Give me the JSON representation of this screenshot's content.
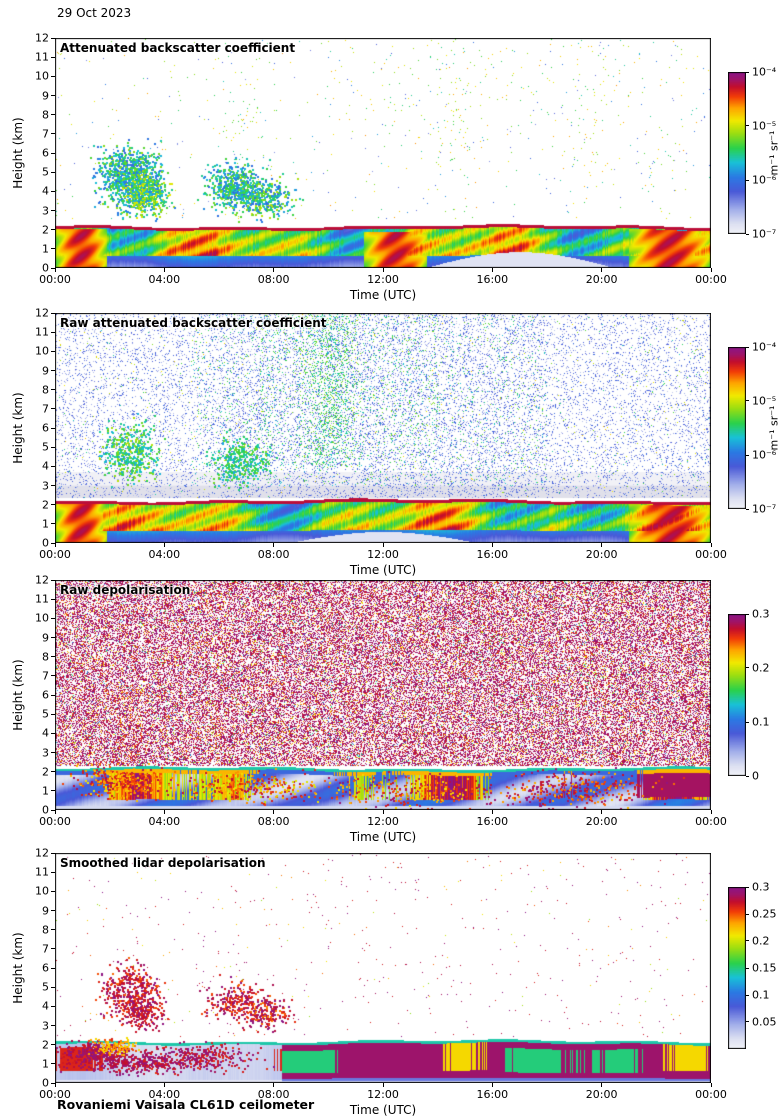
{
  "page": {
    "date_label": "29 Oct 2023",
    "footer": "Rovaniemi Vaisala CL61D ceilometer"
  },
  "style": {
    "figure_bg": "#ffffff",
    "axis_color": "#000000",
    "colormap": [
      [
        0.0,
        "#f2f2f8"
      ],
      [
        0.06,
        "#dde1f2"
      ],
      [
        0.15,
        "#a2aeea"
      ],
      [
        0.26,
        "#4a5ad8"
      ],
      [
        0.35,
        "#2b7ae4"
      ],
      [
        0.44,
        "#19c2d8"
      ],
      [
        0.53,
        "#2bd24b"
      ],
      [
        0.62,
        "#9ade12"
      ],
      [
        0.7,
        "#f2ea00"
      ],
      [
        0.78,
        "#ffa400"
      ],
      [
        0.85,
        "#f23c08"
      ],
      [
        0.91,
        "#c40e2c"
      ],
      [
        0.955,
        "#a01468"
      ],
      [
        1.0,
        "#8c1488"
      ]
    ]
  },
  "chart_data": [
    {
      "type": "heatmap",
      "title": "Attenuated backscatter coefficient",
      "xlabel": "Time (UTC)",
      "ylabel": "Height (km)",
      "x_range_hours": [
        0,
        24
      ],
      "x_ticks": [
        "00:00",
        "04:00",
        "08:00",
        "12:00",
        "16:00",
        "20:00",
        "00:00"
      ],
      "ylim": [
        0,
        12
      ],
      "y_ticks": [
        "0",
        "1",
        "2",
        "3",
        "4",
        "5",
        "6",
        "7",
        "8",
        "9",
        "10",
        "11",
        "12"
      ],
      "grid": false,
      "colorbar": {
        "scale": "log",
        "range": [
          1e-07,
          0.0001
        ],
        "unit": "m⁻¹ sr⁻¹",
        "ticks": [
          {
            "label": "10⁻⁴",
            "f": 1
          },
          {
            "label": "10⁻⁵",
            "f": 0.667
          },
          {
            "label": "10⁻⁶",
            "f": 0.333
          },
          {
            "label": "10⁻⁷",
            "f": 0
          }
        ]
      },
      "features": {
        "boundary_layer": {
          "top_km": 2.2,
          "value_range": "1e-5 to 1e-4 m-1 sr-1",
          "cap": "thin dark-red lid at ~2.2-2.3 km"
        },
        "clouds": [
          {
            "time_utc": "01:30-04:00",
            "height_km": [
              3,
              6
            ],
            "value": "~1e-6 to 1e-5"
          },
          {
            "time_utc": "05:30-08:30",
            "height_km": [
              3,
              5
            ],
            "value": "~1e-6 to 1e-5"
          }
        ],
        "background": "white with sparse green/orange speckle noise above 2.5 km",
        "low_signal_patch": "very low backscatter near surface ~14:00-20:00"
      },
      "seed": 11,
      "render": {
        "speckle": [
          {
            "p": 0.0045,
            "vmin": 0.45,
            "vmax": 0.8,
            "hmin": 2.6,
            "hmax": 12,
            "streaky": true
          },
          {
            "p": 0.0035,
            "vmin": 0.48,
            "vmax": 0.78,
            "hmin": 5.5,
            "hmax": 12,
            "tmin": 10,
            "tmax": 21.5
          },
          {
            "p": 0.0015,
            "vmin": 0.18,
            "vmax": 0.4,
            "hmin": 2.6,
            "hmax": 12
          }
        ],
        "clouds": [
          {
            "t": 2.7,
            "h": 4.8,
            "st": 0.55,
            "sh": 0.75,
            "n": 900,
            "vmin": 0.3,
            "vmax": 0.62,
            "s": 2
          },
          {
            "t": 3.3,
            "h": 3.9,
            "st": 0.4,
            "sh": 0.5,
            "n": 500,
            "vmin": 0.35,
            "vmax": 0.7,
            "s": 2
          },
          {
            "t": 6.6,
            "h": 4.3,
            "st": 0.5,
            "sh": 0.6,
            "n": 500,
            "vmin": 0.3,
            "vmax": 0.6,
            "s": 2
          },
          {
            "t": 7.6,
            "h": 3.7,
            "st": 0.6,
            "sh": 0.5,
            "n": 350,
            "vmin": 0.3,
            "vmax": 0.65,
            "s": 2
          }
        ],
        "band": {
          "kind": "jet",
          "top": 2.2,
          "warm": [
            {
              "t0": 0,
              "t1": 1.9,
              "h": 2.05
            },
            {
              "t0": 11.3,
              "t1": 13.6,
              "h": 1.9
            },
            {
              "t0": 21.0,
              "t1": 24,
              "h": 2.15
            }
          ],
          "pale": {
            "t0": 13.5,
            "t1": 20.5,
            "h": 0.85
          }
        }
      }
    },
    {
      "type": "heatmap",
      "title": "Raw attenuated backscatter coefficient",
      "xlabel": "Time (UTC)",
      "ylabel": "Height (km)",
      "x_range_hours": [
        0,
        24
      ],
      "x_ticks": [
        "00:00",
        "04:00",
        "08:00",
        "12:00",
        "16:00",
        "20:00",
        "00:00"
      ],
      "ylim": [
        0,
        12
      ],
      "y_ticks": [
        "0",
        "1",
        "2",
        "3",
        "4",
        "5",
        "6",
        "7",
        "8",
        "9",
        "10",
        "11",
        "12"
      ],
      "grid": false,
      "colorbar": {
        "scale": "log",
        "range": [
          1e-07,
          0.0001
        ],
        "unit": "m⁻¹ sr⁻¹",
        "ticks": [
          {
            "label": "10⁻⁴",
            "f": 1
          },
          {
            "label": "10⁻⁵",
            "f": 0.667
          },
          {
            "label": "10⁻⁶",
            "f": 0.333
          },
          {
            "label": "10⁻⁷",
            "f": 0
          }
        ]
      },
      "features": {
        "boundary_layer": {
          "top_km": 2.25,
          "cap": "thin dark-red lid at ~2.3 km"
        },
        "noise": "dense blue speckle (raw signal noise) everywhere above the boundary layer",
        "daytime_noise": "green noise plume ~08:00-14:00 above 4 km",
        "haze": "light grey attenuated zone ~2.3-3.5 km across whole day"
      },
      "seed": 22,
      "render": {
        "haze": [
          {
            "hmin": 2.35,
            "hmax": 3.0,
            "color": "#e0e0ea",
            "alpha": 1
          },
          {
            "hmin": 3.0,
            "hmax": 3.7,
            "color": "#e0e0ea",
            "alpha": 0.45
          }
        ],
        "speckle": [
          {
            "p": 0.1,
            "vmin": 0.1,
            "vmax": 0.32,
            "hmin": 2.35,
            "hmax": 12
          },
          {
            "p": 0.05,
            "vmin": 0.1,
            "vmax": 0.3,
            "hmin": 2.35,
            "hmax": 12,
            "tmin": 6,
            "tmax": 18
          },
          {
            "p": 0.06,
            "vmin": 0.42,
            "vmax": 0.62,
            "hmin": 4,
            "hmax": 12,
            "tmin": 7.5,
            "tmax": 14,
            "streaky": true
          },
          {
            "p": 0.025,
            "vmin": 0.4,
            "vmax": 0.6,
            "hmin": 3,
            "hmax": 12,
            "tmin": 5,
            "tmax": 18
          },
          {
            "p": 0.006,
            "vmin": 0.45,
            "vmax": 0.75,
            "hmin": 2.35,
            "hmax": 12
          }
        ],
        "clouds": [
          {
            "t": 2.7,
            "h": 4.8,
            "st": 0.5,
            "sh": 0.7,
            "n": 400,
            "vmin": 0.4,
            "vmax": 0.65,
            "s": 2
          },
          {
            "t": 6.8,
            "h": 4.2,
            "st": 0.5,
            "sh": 0.6,
            "n": 300,
            "vmin": 0.4,
            "vmax": 0.6,
            "s": 2
          }
        ],
        "band": {
          "kind": "jet",
          "top": 2.25,
          "warm": [
            {
              "t0": 0,
              "t1": 1.9,
              "h": 2.1
            },
            {
              "t0": 21.0,
              "t1": 24,
              "h": 2.3
            }
          ],
          "pale": {
            "t0": 8.5,
            "t1": 15.5,
            "h": 0.6
          }
        }
      }
    },
    {
      "type": "heatmap",
      "title": "Raw depolarisation",
      "xlabel": "Time (UTC)",
      "ylabel": "Height (km)",
      "x_range_hours": [
        0,
        24
      ],
      "x_ticks": [
        "00:00",
        "04:00",
        "08:00",
        "12:00",
        "16:00",
        "20:00",
        "00:00"
      ],
      "ylim": [
        0,
        12
      ],
      "y_ticks": [
        "0",
        "1",
        "2",
        "3",
        "4",
        "5",
        "6",
        "7",
        "8",
        "9",
        "10",
        "11",
        "12"
      ],
      "grid": false,
      "colorbar": {
        "scale": "linear",
        "range": [
          0,
          0.3
        ],
        "unit": "",
        "ticks": [
          {
            "label": "0.3",
            "f": 1
          },
          {
            "label": "0.2",
            "f": 0.667
          },
          {
            "label": "0.1",
            "f": 0.333
          },
          {
            "label": "0",
            "f": 0
          }
        ]
      },
      "features": {
        "noise": "dense saturated magenta/purple depolarisation noise (>0.3) above the boundary layer all day",
        "boundary_layer": {
          "top_km": 2.2,
          "description": "low depolarisation (blue, <0.1) with orange/red streak patches, green/cyan line at top"
        }
      },
      "seed": 33,
      "render": {
        "speckle": [
          {
            "p": 0.4,
            "vmin": 0.9,
            "vmax": 1.0,
            "hmin": 2.3,
            "hmax": 12
          },
          {
            "p": 0.06,
            "vmin": 0.68,
            "vmax": 0.88,
            "hmin": 2.3,
            "hmax": 12
          },
          {
            "p": 0.02,
            "vmin": 0.3,
            "vmax": 0.6,
            "hmin": 2.3,
            "hmax": 12
          },
          {
            "p": 0.08,
            "vmin": 0.7,
            "vmax": 0.95,
            "tmin": 2.2,
            "tmax": 3.2,
            "hmin": 2.5,
            "hmax": 6.5
          },
          {
            "p": 0.05,
            "vmin": 0.7,
            "vmax": 0.92,
            "tmin": 5.4,
            "tmax": 6.1,
            "hmin": 2.5,
            "hmax": 5
          }
        ],
        "clouds": [
          {
            "t": 2.5,
            "h": 1.5,
            "st": 0.8,
            "sh": 0.4,
            "n": 400,
            "vmin": 0.7,
            "vmax": 0.95,
            "s": 2
          },
          {
            "t": 7.0,
            "h": 1.2,
            "st": 1.2,
            "sh": 0.4,
            "n": 350,
            "vmin": 0.65,
            "vmax": 0.95,
            "s": 2
          },
          {
            "t": 13.0,
            "h": 1.0,
            "st": 1.5,
            "sh": 0.4,
            "n": 300,
            "vmin": 0.7,
            "vmax": 1.0,
            "s": 2
          },
          {
            "t": 19.0,
            "h": 1.1,
            "st": 1.5,
            "sh": 0.45,
            "n": 350,
            "vmin": 0.75,
            "vmax": 1.0,
            "s": 2
          }
        ],
        "band": {
          "kind": "depolmix",
          "top": 2.2
        }
      }
    },
    {
      "type": "heatmap",
      "title": "Smoothed lidar depolarisation",
      "xlabel": "Time (UTC)",
      "ylabel": "Height (km)",
      "x_range_hours": [
        0,
        24
      ],
      "x_ticks": [
        "00:00",
        "04:00",
        "08:00",
        "12:00",
        "16:00",
        "20:00",
        "00:00"
      ],
      "ylim": [
        0,
        12
      ],
      "y_ticks": [
        "0",
        "1",
        "2",
        "3",
        "4",
        "5",
        "6",
        "7",
        "8",
        "9",
        "10",
        "11",
        "12"
      ],
      "grid": false,
      "colorbar": {
        "scale": "linear",
        "range": [
          0,
          0.3
        ],
        "unit": "",
        "ticks": [
          {
            "label": "0.3",
            "f": 1
          },
          {
            "label": "0.25",
            "f": 0.833
          },
          {
            "label": "0.2",
            "f": 0.667
          },
          {
            "label": "0.15",
            "f": 0.5
          },
          {
            "label": "0.1",
            "f": 0.333
          },
          {
            "label": "0.05",
            "f": 0.167
          }
        ]
      },
      "features": {
        "clouds": [
          {
            "time_utc": "01:30-04:00",
            "height_km": [
              3,
              6
            ],
            "depolarisation": ">0.25 (ice/high depol speckle)"
          },
          {
            "time_utc": "05:30-08:30",
            "height_km": [
              3,
              5
            ],
            "depolarisation": ">0.25"
          }
        ],
        "boundary_layer": {
          "top_km": 2.2,
          "description": "low depolarisation (<0.05) before ~08:00 with high-depol patches; saturated dark purple (>0.3) band ~08:00-24:00 with green (~0.15) patches; green/cyan line at top"
        },
        "background": "white with sparse magenta speckle above 2.5 km"
      },
      "seed": 44,
      "render": {
        "speckle": [
          {
            "p": 0.0035,
            "vmin": 0.88,
            "vmax": 1.0,
            "hmin": 2.4,
            "hmax": 12
          },
          {
            "p": 0.0012,
            "vmin": 0.6,
            "vmax": 0.85,
            "hmin": 2.4,
            "hmax": 12
          }
        ],
        "clouds": [
          {
            "t": 2.7,
            "h": 4.8,
            "st": 0.5,
            "sh": 0.7,
            "n": 380,
            "vmin": 0.82,
            "vmax": 1.0,
            "s": 2
          },
          {
            "t": 3.2,
            "h": 3.8,
            "st": 0.35,
            "sh": 0.5,
            "n": 220,
            "vmin": 0.85,
            "vmax": 1.0,
            "s": 2
          },
          {
            "t": 6.7,
            "h": 4.2,
            "st": 0.55,
            "sh": 0.55,
            "n": 260,
            "vmin": 0.82,
            "vmax": 1.0,
            "s": 2
          },
          {
            "t": 7.8,
            "h": 3.6,
            "st": 0.4,
            "sh": 0.4,
            "n": 150,
            "vmin": 0.8,
            "vmax": 1.0,
            "s": 2
          },
          {
            "t": 1.5,
            "h": 1.5,
            "st": 0.6,
            "sh": 0.35,
            "n": 350,
            "vmin": 0.88,
            "vmax": 1.0,
            "s": 2
          },
          {
            "t": 3.2,
            "h": 1.1,
            "st": 0.7,
            "sh": 0.3,
            "n": 280,
            "vmin": 0.88,
            "vmax": 1.0,
            "s": 2
          },
          {
            "t": 5.5,
            "h": 1.3,
            "st": 0.9,
            "sh": 0.35,
            "n": 300,
            "vmin": 0.86,
            "vmax": 1.0,
            "s": 2
          },
          {
            "t": 2.2,
            "h": 1.9,
            "st": 0.4,
            "sh": 0.2,
            "n": 120,
            "vmin": 0.7,
            "vmax": 0.85,
            "s": 2
          }
        ],
        "band": {
          "kind": "depolsplit",
          "top": 2.2,
          "split": 8.3
        }
      }
    }
  ]
}
